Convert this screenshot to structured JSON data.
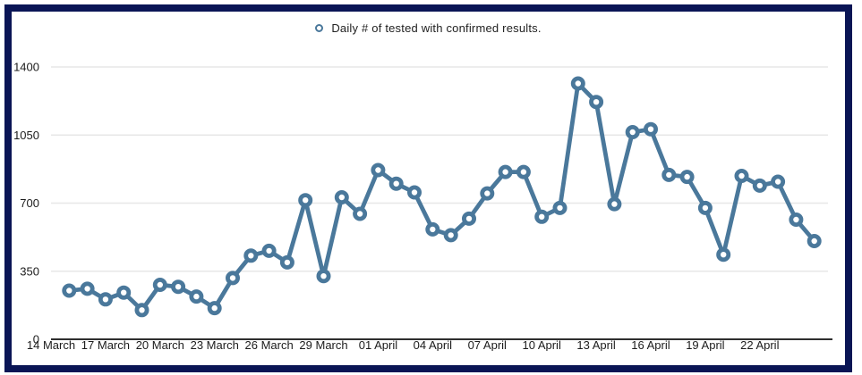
{
  "frame": {
    "border_color": "#0a1555",
    "background": "#ffffff"
  },
  "legend": {
    "items": [
      {
        "label": "Daily # of tested with confirmed results.",
        "marker": "open-circle-icon",
        "color": "#4a789b"
      }
    ],
    "position": "top-center"
  },
  "chart_data": {
    "type": "line",
    "title": "",
    "grid": "horizontal-only",
    "legend_position": "top-center",
    "series_color": "#4a789b",
    "marker_style": "open-circle",
    "x": [
      "15 March",
      "16 March",
      "17 March",
      "18 March",
      "19 March",
      "20 March",
      "21 March",
      "22 March",
      "23 March",
      "24 March",
      "25 March",
      "26 March",
      "27 March",
      "28 March",
      "29 March",
      "30 March",
      "31 March",
      "01 April",
      "02 April",
      "03 April",
      "04 April",
      "05 April",
      "06 April",
      "07 April",
      "08 April",
      "09 April",
      "10 April",
      "11 April",
      "12 April",
      "13 April",
      "14 April",
      "15 April",
      "16 April",
      "17 April",
      "18 April",
      "19 April",
      "20 April",
      "21 April",
      "22 April",
      "23 April",
      "24 April",
      "25 April"
    ],
    "series": [
      {
        "name": "Daily # of tested with confirmed results.",
        "values": [
          250,
          260,
          205,
          240,
          150,
          280,
          270,
          220,
          160,
          315,
          430,
          455,
          395,
          715,
          325,
          730,
          645,
          870,
          800,
          755,
          565,
          535,
          620,
          750,
          860,
          860,
          630,
          675,
          1315,
          1220,
          695,
          1065,
          1080,
          845,
          835,
          675,
          435,
          840,
          790,
          810,
          615,
          505
        ]
      }
    ],
    "x_axis": {
      "start_label": "14 March",
      "tick_labels": [
        "14 March",
        "17 March",
        "20 March",
        "23 March",
        "26 March",
        "29 March",
        "01 April",
        "04 April",
        "07 April",
        "10 April",
        "13 April",
        "16 April",
        "19 April",
        "22 April"
      ],
      "tick_day_offsets": [
        0,
        3,
        6,
        9,
        12,
        15,
        18,
        21,
        24,
        27,
        30,
        33,
        36,
        39
      ],
      "first_point_day_offset": 1
    },
    "y_axis": {
      "ticks": [
        0,
        350,
        700,
        1050,
        1400
      ],
      "range": [
        0,
        1400
      ],
      "label_color": "#1c1c1c"
    },
    "colors": {
      "line": "#4a789b",
      "marker_fill": "#ffffff",
      "gridline": "#e7e7e7",
      "axis_line": "#111111",
      "tick_text": "#1c1c1c"
    }
  }
}
